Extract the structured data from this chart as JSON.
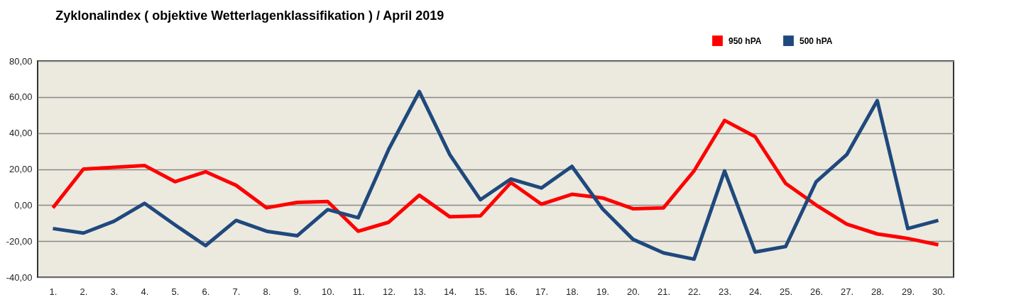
{
  "chart_data": {
    "type": "line",
    "title": "Zyklonalindex  ( objektive Wetterlagenklassifikation )  /  April 2019",
    "categories": [
      "1.",
      "2.",
      "3.",
      "4.",
      "5.",
      "6.",
      "7.",
      "8.",
      "9.",
      "10.",
      "11.",
      "12.",
      "13.",
      "14.",
      "15.",
      "16.",
      "17.",
      "18.",
      "19.",
      "20.",
      "21.",
      "22.",
      "23.",
      "24.",
      "25.",
      "26.",
      "27.",
      "28.",
      "29.",
      "30."
    ],
    "series": [
      {
        "name": "950 hPA",
        "color": "#ff0000",
        "values": [
          -1.5,
          20,
          21,
          22,
          13,
          18.5,
          11,
          -1.5,
          1.5,
          2,
          -14.5,
          -9.5,
          5.5,
          -6.5,
          -6,
          12.5,
          0.5,
          6,
          4,
          -2,
          -1.5,
          19,
          47,
          38,
          12,
          0,
          -10.5,
          -16,
          -18.5,
          -22
        ]
      },
      {
        "name": "500 hPA",
        "color": "#1f497d",
        "values": [
          -13,
          -15.5,
          -9,
          1,
          -11,
          -22.5,
          -8.5,
          -14.5,
          -17,
          -2.5,
          -7,
          31,
          63,
          28,
          3,
          14.5,
          9.5,
          21.5,
          -2,
          -19,
          -26.5,
          -30,
          19,
          -26,
          -23,
          13,
          28,
          58,
          -13,
          -8.5
        ]
      }
    ],
    "ylim": [
      -40,
      80
    ],
    "yticks": [
      {
        "value": -40,
        "label": "-40,00"
      },
      {
        "value": -20,
        "label": "-20,00"
      },
      {
        "value": 0,
        "label": "0,00"
      },
      {
        "value": 20,
        "label": "20,00"
      },
      {
        "value": 40,
        "label": "40,00"
      },
      {
        "value": 60,
        "label": "60,00"
      },
      {
        "value": 80,
        "label": "80,00"
      }
    ],
    "grid": "y",
    "legend": "top right",
    "marker": "none",
    "line_style": "solid"
  }
}
